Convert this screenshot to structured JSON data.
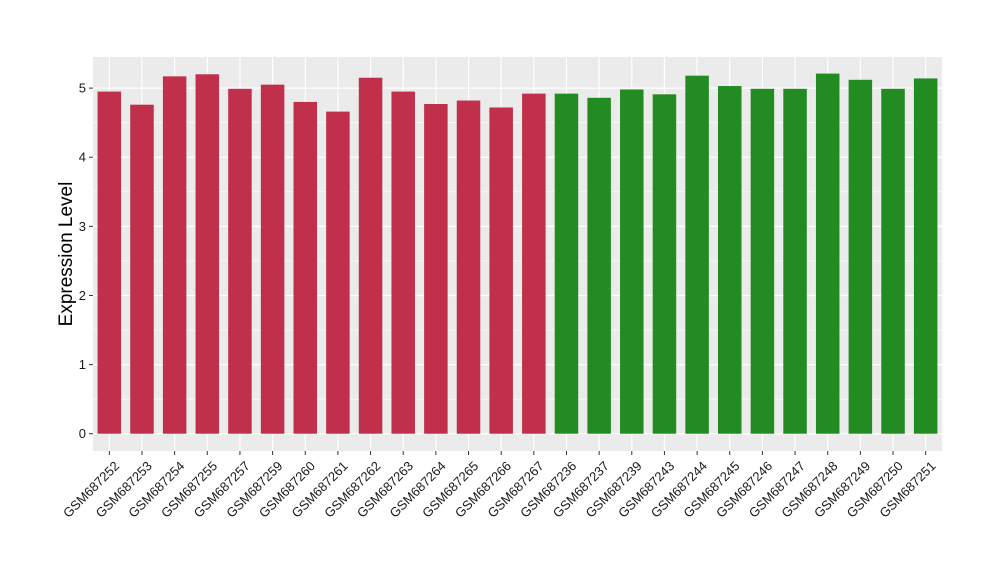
{
  "chart_data": {
    "type": "bar",
    "title": "",
    "xlabel": "",
    "ylabel": "Expression Level",
    "ylim": [
      -0.25,
      5.45
    ],
    "yticks": [
      0,
      1,
      2,
      3,
      4,
      5
    ],
    "grid": true,
    "legend": "none",
    "colors": {
      "group_1": "#C0304A",
      "group_2": "#228B22",
      "panel": "#EBEBEB",
      "grid": "#FFFFFF"
    },
    "categories": [
      "GSM687252",
      "GSM687253",
      "GSM687254",
      "GSM687255",
      "GSM687257",
      "GSM687259",
      "GSM687260",
      "GSM687261",
      "GSM687262",
      "GSM687263",
      "GSM687264",
      "GSM687265",
      "GSM687266",
      "GSM687267",
      "GSM687236",
      "GSM687237",
      "GSM687239",
      "GSM687243",
      "GSM687244",
      "GSM687245",
      "GSM687246",
      "GSM687247",
      "GSM687248",
      "GSM687249",
      "GSM687250",
      "GSM687251"
    ],
    "values": [
      4.95,
      4.76,
      5.17,
      5.2,
      4.99,
      5.05,
      4.8,
      4.66,
      5.15,
      4.95,
      4.77,
      4.82,
      4.72,
      4.92,
      4.92,
      4.86,
      4.98,
      4.91,
      5.18,
      5.03,
      4.99,
      4.99,
      5.21,
      5.12,
      4.99,
      5.14
    ],
    "groups": [
      "group_1",
      "group_1",
      "group_1",
      "group_1",
      "group_1",
      "group_1",
      "group_1",
      "group_1",
      "group_1",
      "group_1",
      "group_1",
      "group_1",
      "group_1",
      "group_1",
      "group_2",
      "group_2",
      "group_2",
      "group_2",
      "group_2",
      "group_2",
      "group_2",
      "group_2",
      "group_2",
      "group_2",
      "group_2",
      "group_2"
    ]
  }
}
